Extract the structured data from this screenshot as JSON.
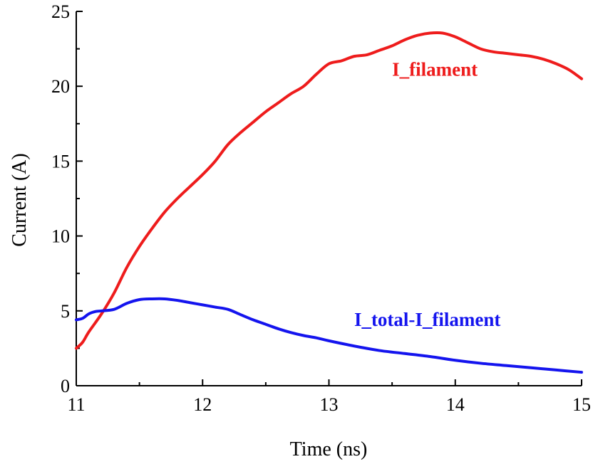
{
  "chart_data": {
    "type": "line",
    "title": "",
    "xlabel": "Time (ns)",
    "ylabel": "Current (A)",
    "xlim": [
      11,
      15
    ],
    "ylim": [
      0,
      25
    ],
    "xticks": [
      11,
      12,
      13,
      14,
      15
    ],
    "yticks": [
      0,
      5,
      10,
      15,
      20,
      25
    ],
    "x_minor_step": 0.5,
    "y_minor_step": 2.5,
    "grid": false,
    "legend": "none",
    "series": [
      {
        "name": "I_filament",
        "color": "#ee1c1c",
        "points": [
          [
            11.0,
            2.5
          ],
          [
            11.05,
            2.9
          ],
          [
            11.1,
            3.6
          ],
          [
            11.2,
            4.8
          ],
          [
            11.3,
            6.2
          ],
          [
            11.4,
            7.9
          ],
          [
            11.5,
            9.3
          ],
          [
            11.6,
            10.5
          ],
          [
            11.7,
            11.6
          ],
          [
            11.8,
            12.5
          ],
          [
            11.9,
            13.3
          ],
          [
            12.0,
            14.1
          ],
          [
            12.1,
            15.0
          ],
          [
            12.2,
            16.1
          ],
          [
            12.3,
            16.9
          ],
          [
            12.4,
            17.6
          ],
          [
            12.5,
            18.3
          ],
          [
            12.6,
            18.9
          ],
          [
            12.7,
            19.5
          ],
          [
            12.8,
            20.0
          ],
          [
            12.9,
            20.8
          ],
          [
            13.0,
            21.5
          ],
          [
            13.1,
            21.7
          ],
          [
            13.2,
            22.0
          ],
          [
            13.3,
            22.1
          ],
          [
            13.4,
            22.4
          ],
          [
            13.5,
            22.7
          ],
          [
            13.6,
            23.1
          ],
          [
            13.7,
            23.4
          ],
          [
            13.8,
            23.55
          ],
          [
            13.9,
            23.55
          ],
          [
            14.0,
            23.3
          ],
          [
            14.1,
            22.9
          ],
          [
            14.2,
            22.5
          ],
          [
            14.3,
            22.3
          ],
          [
            14.4,
            22.2
          ],
          [
            14.5,
            22.1
          ],
          [
            14.6,
            22.0
          ],
          [
            14.7,
            21.8
          ],
          [
            14.8,
            21.5
          ],
          [
            14.9,
            21.1
          ],
          [
            15.0,
            20.5
          ]
        ],
        "label_x": 13.5,
        "label_y": 20.7
      },
      {
        "name": "I_total-I_filament",
        "color": "#1414ee",
        "points": [
          [
            11.0,
            4.4
          ],
          [
            11.05,
            4.5
          ],
          [
            11.1,
            4.8
          ],
          [
            11.15,
            4.95
          ],
          [
            11.2,
            5.0
          ],
          [
            11.3,
            5.1
          ],
          [
            11.4,
            5.5
          ],
          [
            11.5,
            5.75
          ],
          [
            11.6,
            5.8
          ],
          [
            11.7,
            5.8
          ],
          [
            11.8,
            5.7
          ],
          [
            11.9,
            5.55
          ],
          [
            12.0,
            5.4
          ],
          [
            12.1,
            5.25
          ],
          [
            12.2,
            5.1
          ],
          [
            12.3,
            4.75
          ],
          [
            12.4,
            4.4
          ],
          [
            12.5,
            4.1
          ],
          [
            12.6,
            3.8
          ],
          [
            12.7,
            3.55
          ],
          [
            12.8,
            3.35
          ],
          [
            12.9,
            3.2
          ],
          [
            13.0,
            3.0
          ],
          [
            13.2,
            2.65
          ],
          [
            13.4,
            2.35
          ],
          [
            13.6,
            2.15
          ],
          [
            13.8,
            1.95
          ],
          [
            14.0,
            1.7
          ],
          [
            14.2,
            1.5
          ],
          [
            14.4,
            1.35
          ],
          [
            14.6,
            1.2
          ],
          [
            14.8,
            1.05
          ],
          [
            15.0,
            0.9
          ]
        ],
        "label_x": 13.2,
        "label_y": 4.0
      }
    ]
  }
}
